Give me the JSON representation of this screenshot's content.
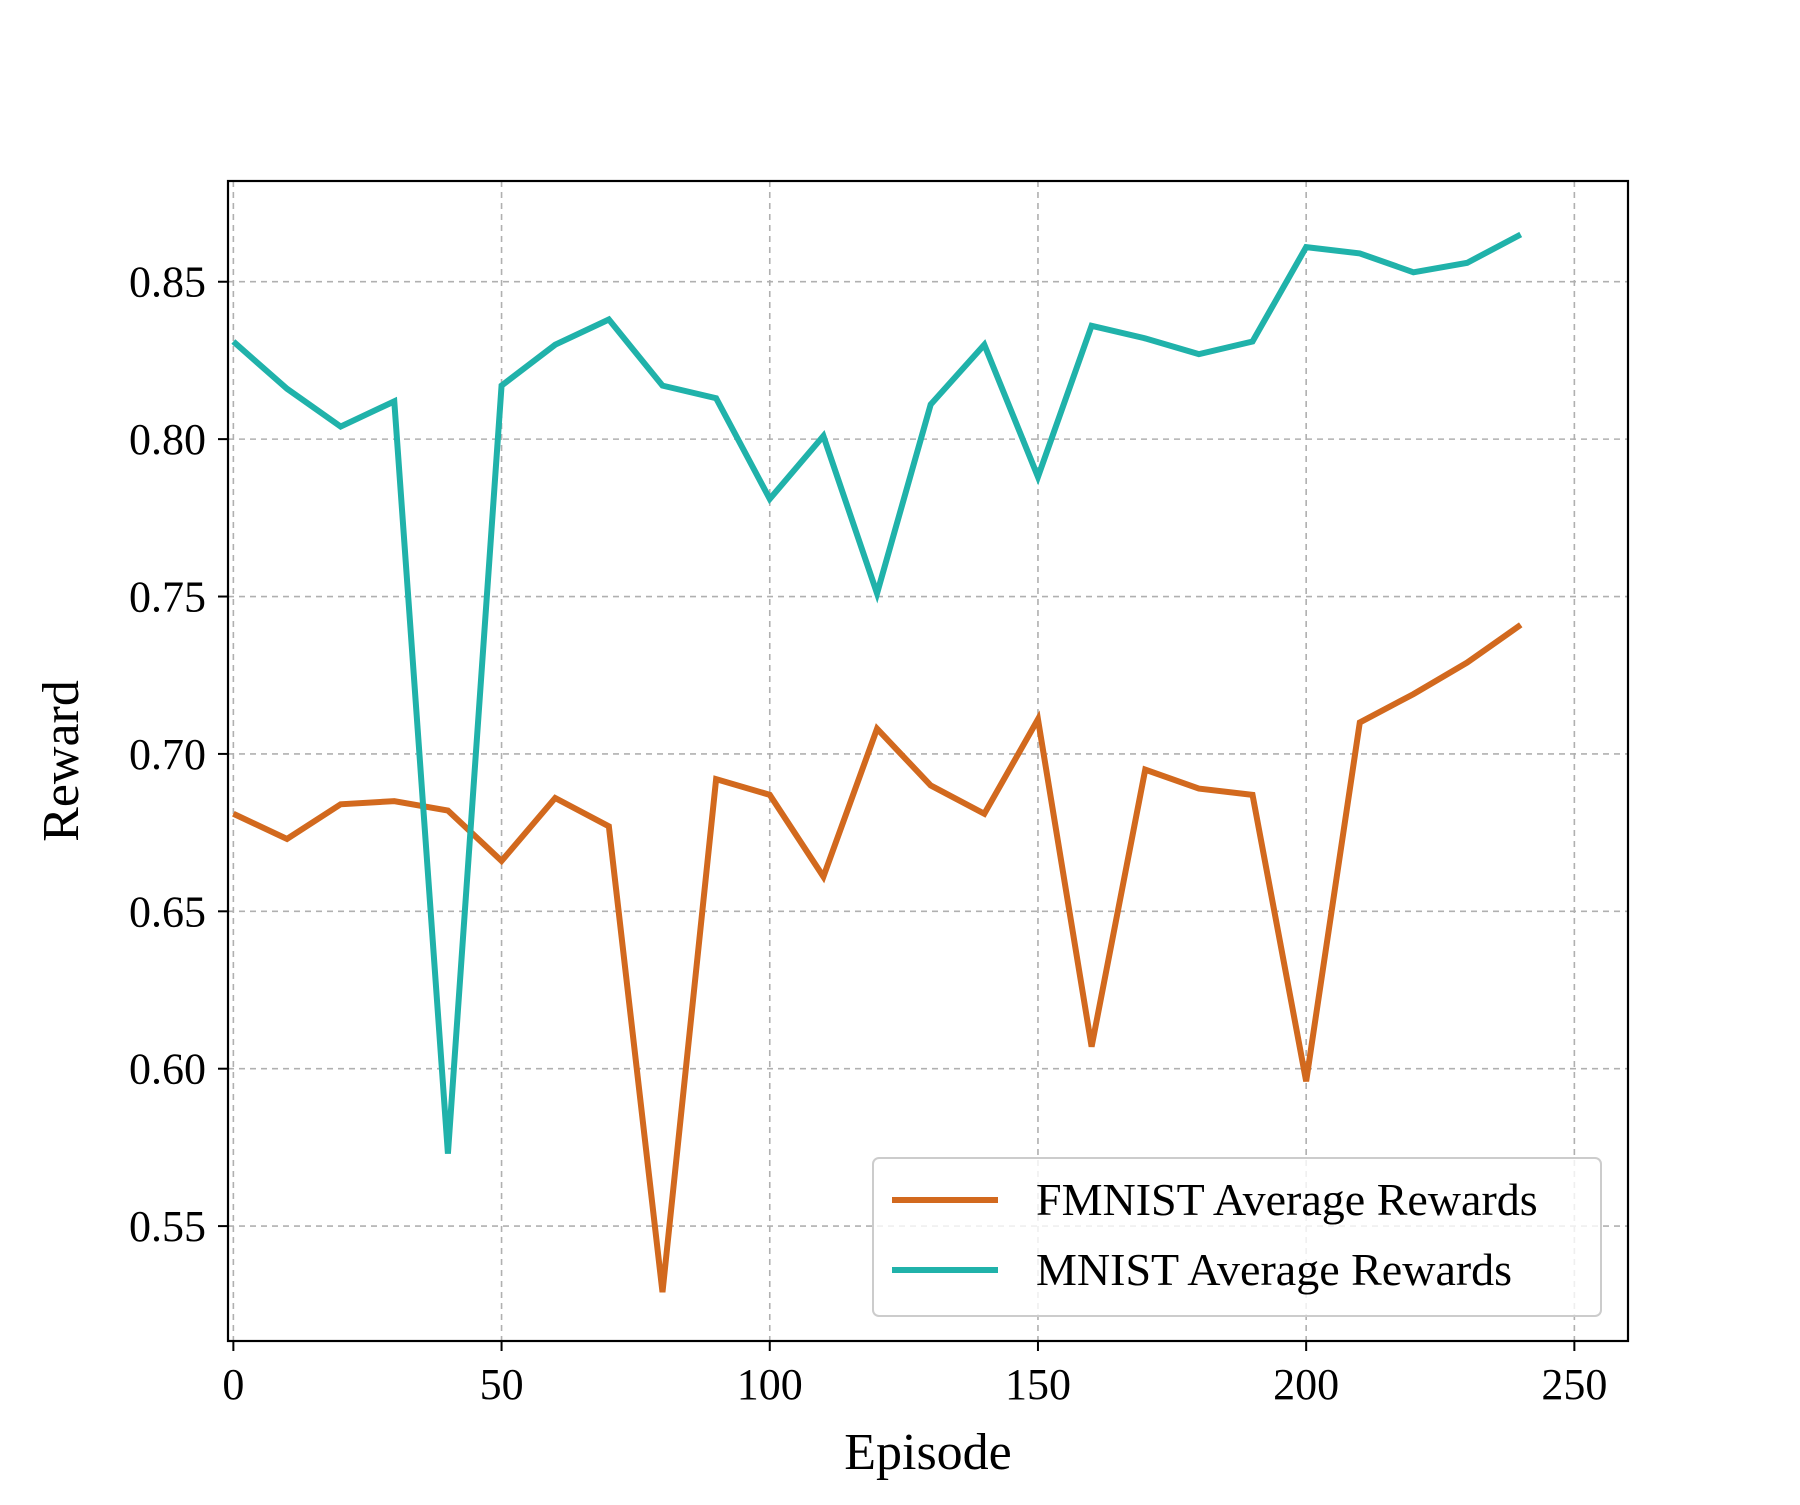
{
  "chart_data": {
    "type": "line",
    "title": "",
    "xlabel": "Episode",
    "ylabel": "Reward",
    "xlim": [
      -1,
      260
    ],
    "ylim": [
      0.5135,
      0.882
    ],
    "xticks": [
      0,
      50,
      100,
      150,
      200,
      250
    ],
    "xtick_labels": [
      "0",
      "50",
      "100",
      "150",
      "200",
      "250"
    ],
    "yticks": [
      0.55,
      0.6,
      0.65,
      0.7,
      0.75,
      0.8,
      0.85
    ],
    "ytick_labels": [
      "0.55",
      "0.60",
      "0.65",
      "0.70",
      "0.75",
      "0.80",
      "0.85"
    ],
    "grid": true,
    "legend_position": "lower-right",
    "x": [
      0,
      10,
      20,
      30,
      40,
      50,
      60,
      70,
      80,
      90,
      100,
      110,
      120,
      130,
      140,
      150,
      160,
      170,
      180,
      190,
      200,
      210,
      220,
      230,
      240
    ],
    "series": [
      {
        "name": "FMNIST Average Rewards",
        "color": "#D2691E",
        "values": [
          0.681,
          0.673,
          0.684,
          0.685,
          0.682,
          0.666,
          0.686,
          0.677,
          0.529,
          0.692,
          0.687,
          0.661,
          0.708,
          0.69,
          0.681,
          0.711,
          0.607,
          0.695,
          0.689,
          0.687,
          0.596,
          0.71,
          0.719,
          0.729,
          0.741
        ]
      },
      {
        "name": "MNIST Average Rewards",
        "color": "#20B2AA",
        "values": [
          0.831,
          0.816,
          0.804,
          0.812,
          0.573,
          0.817,
          0.83,
          0.838,
          0.817,
          0.813,
          0.781,
          0.801,
          0.751,
          0.811,
          0.83,
          0.788,
          0.836,
          0.832,
          0.827,
          0.831,
          0.861,
          0.859,
          0.853,
          0.856,
          0.865
        ]
      }
    ]
  }
}
